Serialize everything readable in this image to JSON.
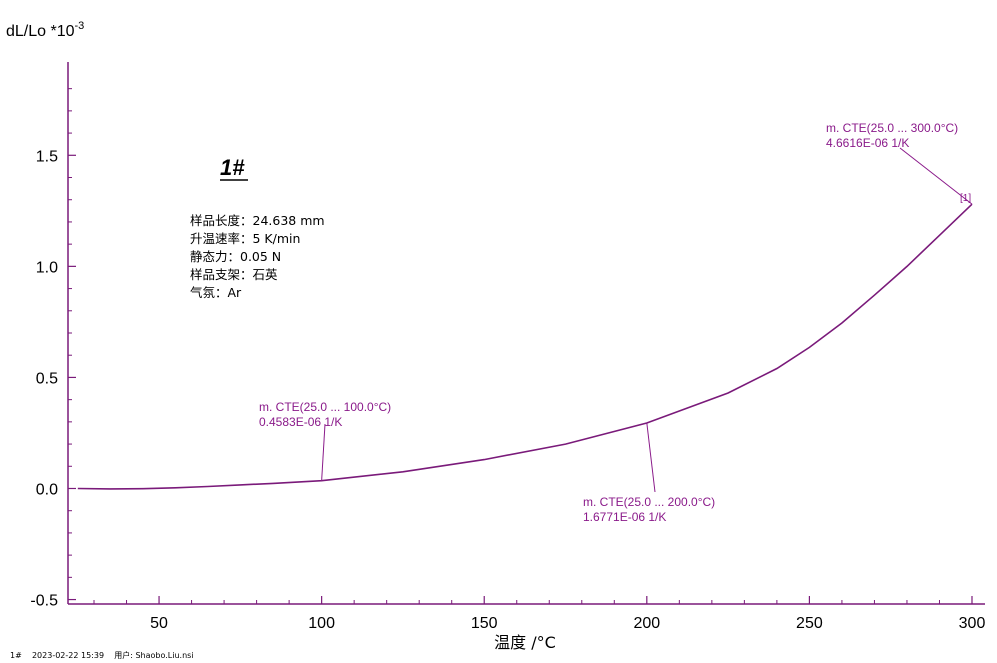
{
  "chart_data": {
    "type": "line",
    "ylabel_base": "dL/Lo *10",
    "ylabel_exp": "-3",
    "xlabel": "温度 /°C",
    "xlim": [
      22,
      304
    ],
    "ylim": [
      -0.52,
      1.92
    ],
    "xticks": [
      50,
      100,
      150,
      200,
      250,
      300
    ],
    "yticks": [
      -0.5,
      0.0,
      0.5,
      1.0,
      1.5
    ],
    "ytick_labels": [
      "-0.5",
      "0.0",
      "0.5",
      "1.0",
      "1.5"
    ],
    "series": [
      {
        "color": "#7a1a7a",
        "x": [
          25,
          35,
          45,
          55,
          65,
          75,
          85,
          100,
          125,
          150,
          175,
          200,
          225,
          240,
          250,
          260,
          270,
          280,
          290,
          300
        ],
        "y": [
          0.0,
          -0.002,
          -0.001,
          0.003,
          0.009,
          0.016,
          0.023,
          0.035,
          0.075,
          0.13,
          0.2,
          0.295,
          0.43,
          0.54,
          0.635,
          0.745,
          0.87,
          1.0,
          1.14,
          1.28
        ]
      }
    ],
    "annotations": [
      {
        "line1": "m. CTE(25.0 ... 100.0°C)",
        "line2": "0.4583E-06 1/K",
        "point": [
          100,
          0.035
        ]
      },
      {
        "line1": "m. CTE(25.0 ... 200.0°C)",
        "line2": "1.6771E-06 1/K",
        "point": [
          200,
          0.295
        ]
      },
      {
        "line1": "m. CTE(25.0 ... 300.0°C)",
        "line2": "4.6616E-06 1/K",
        "point": [
          300,
          1.28
        ]
      }
    ],
    "endpoint_marker": "[1]",
    "grid": false
  },
  "sample": {
    "title": "1#",
    "info_lines": [
      "样品长度：24.638 mm",
      "升温速率：5 K/min",
      "静态力：0.05 N",
      "样品支架：石英",
      "气氛：Ar"
    ]
  },
  "footer": {
    "text": "1#    2023-02-22 15:39    用户: Shaobo.Liu.nsi"
  },
  "colors": {
    "axis": "#7a1a7a",
    "curve": "#7a1a7a",
    "annotation": "#8a1a8a"
  }
}
